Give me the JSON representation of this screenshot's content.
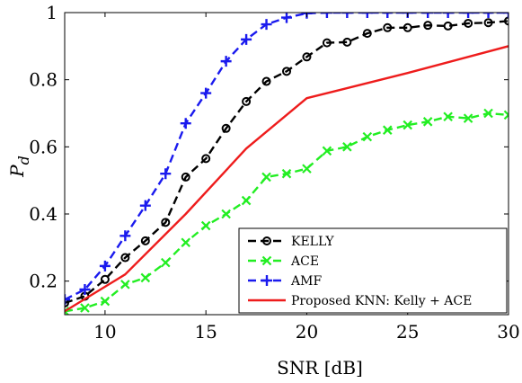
{
  "chart_data": {
    "type": "line",
    "xlabel": "SNR [dB]",
    "ylabel": "P",
    "ylabel_sub": "d",
    "xlim": [
      8,
      30
    ],
    "ylim": [
      0.1,
      1.0
    ],
    "xticks": [
      10,
      15,
      20,
      25,
      30
    ],
    "yticks": [
      0.2,
      0.4,
      0.6,
      0.8,
      1.0
    ],
    "xtick_labels": [
      "10",
      "15",
      "20",
      "25",
      "30"
    ],
    "ytick_labels": [
      "0.2",
      "0.4",
      "0.6",
      "0.8",
      "1"
    ],
    "grid": false,
    "legend_position": "bottom-right",
    "series": [
      {
        "name": "KELLY",
        "color": "#000000",
        "dash": "dashed",
        "marker": "circle",
        "x": [
          8,
          9,
          10,
          11,
          12,
          13,
          14,
          15,
          16,
          17,
          18,
          19,
          20,
          21,
          22,
          23,
          24,
          25,
          26,
          27,
          28,
          29,
          30
        ],
        "y": [
          0.135,
          0.155,
          0.205,
          0.27,
          0.32,
          0.375,
          0.51,
          0.565,
          0.655,
          0.735,
          0.795,
          0.825,
          0.868,
          0.91,
          0.912,
          0.938,
          0.955,
          0.955,
          0.962,
          0.96,
          0.968,
          0.97,
          0.975
        ]
      },
      {
        "name": "ACE",
        "color": "#22ee22",
        "dash": "dashed",
        "marker": "x",
        "x": [
          8,
          9,
          10,
          11,
          12,
          13,
          14,
          15,
          16,
          17,
          18,
          19,
          20,
          21,
          22,
          23,
          24,
          25,
          26,
          27,
          28,
          29,
          30
        ],
        "y": [
          0.11,
          0.12,
          0.14,
          0.19,
          0.21,
          0.255,
          0.315,
          0.365,
          0.4,
          0.44,
          0.51,
          0.52,
          0.535,
          0.588,
          0.6,
          0.63,
          0.65,
          0.665,
          0.675,
          0.69,
          0.685,
          0.7,
          0.695
        ]
      },
      {
        "name": "AMF",
        "color": "#1a1aee",
        "dash": "dashed",
        "marker": "plus",
        "x": [
          8,
          9,
          10,
          11,
          12,
          13,
          14,
          15,
          16,
          17,
          18,
          19,
          20,
          21,
          22,
          23,
          24,
          25,
          26,
          27,
          28,
          29,
          30
        ],
        "y": [
          0.145,
          0.175,
          0.245,
          0.335,
          0.425,
          0.52,
          0.67,
          0.76,
          0.855,
          0.92,
          0.965,
          0.985,
          0.998,
          1.0,
          1.0,
          1.0,
          1.0,
          1.0,
          1.0,
          1.0,
          1.0,
          1.0,
          1.0
        ]
      },
      {
        "name": "Proposed KNN: Kelly + ACE",
        "color": "#ee1c1c",
        "dash": "solid",
        "marker": "none",
        "x": [
          8,
          11,
          14,
          17,
          20,
          25,
          30
        ],
        "y": [
          0.11,
          0.22,
          0.4,
          0.595,
          0.745,
          0.82,
          0.9
        ]
      }
    ]
  }
}
